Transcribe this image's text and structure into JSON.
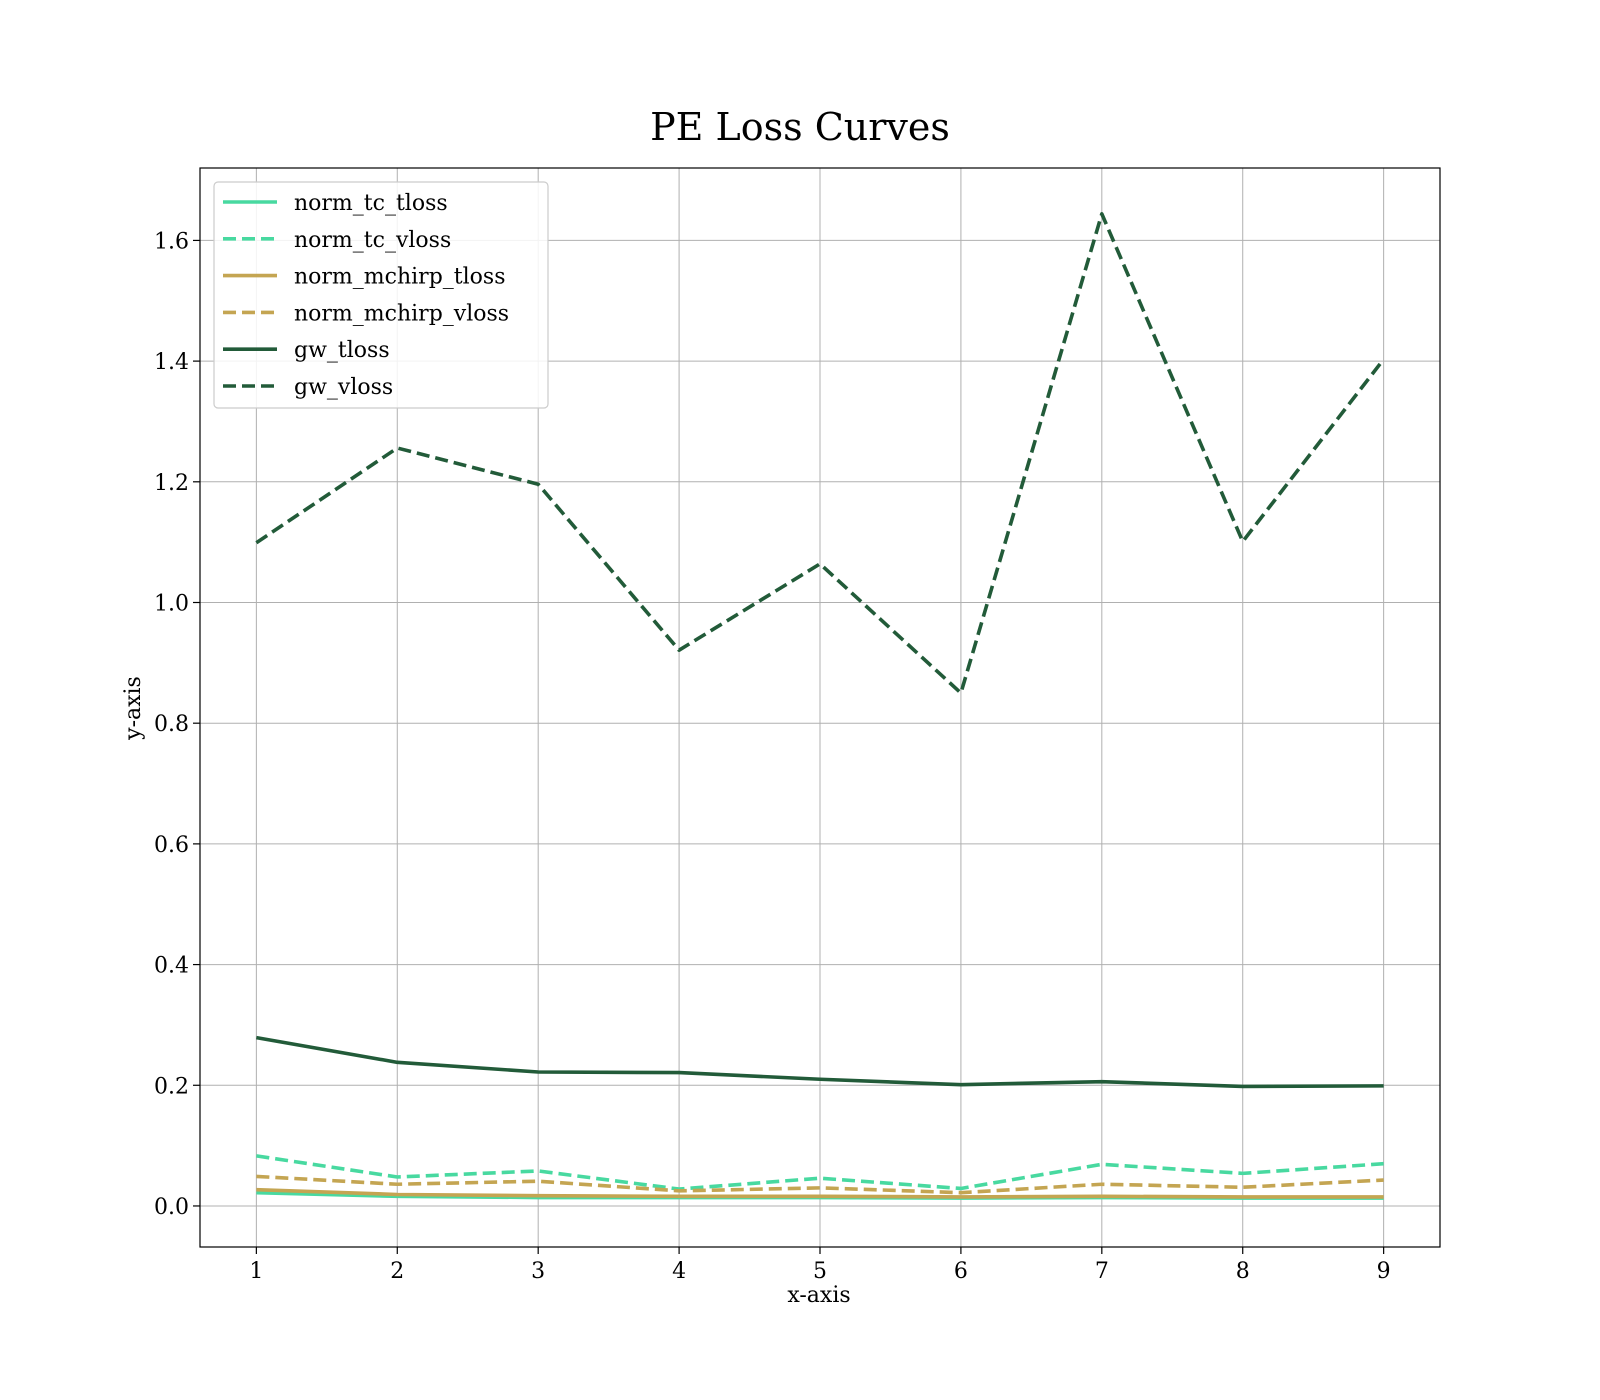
{
  "chart_data": {
    "type": "line",
    "title": "PE Loss Curves",
    "xlabel": "x-axis",
    "ylabel": "y-axis",
    "x": [
      1,
      2,
      3,
      4,
      5,
      6,
      7,
      8,
      9
    ],
    "xticks": [
      "1",
      "2",
      "3",
      "4",
      "5",
      "6",
      "7",
      "8",
      "9"
    ],
    "yticks": [
      "0.0",
      "0.2",
      "0.4",
      "0.6",
      "0.8",
      "1.0",
      "1.2",
      "1.4",
      "1.6"
    ],
    "ytick_values": [
      0.0,
      0.2,
      0.4,
      0.6,
      0.8,
      1.0,
      1.2,
      1.4,
      1.6
    ],
    "xlim": [
      0.6,
      9.4
    ],
    "ylim": [
      -0.068,
      1.72
    ],
    "grid": true,
    "legend_position": "top-left",
    "series": [
      {
        "name": "norm_tc_tloss",
        "color": "#48d9a0",
        "dash": "solid",
        "values": [
          0.022,
          0.016,
          0.014,
          0.014,
          0.014,
          0.013,
          0.014,
          0.013,
          0.013
        ]
      },
      {
        "name": "norm_tc_vloss",
        "color": "#48d9a0",
        "dash": "dashed",
        "values": [
          0.083,
          0.048,
          0.058,
          0.028,
          0.046,
          0.029,
          0.069,
          0.054,
          0.07
        ]
      },
      {
        "name": "norm_mchirp_tloss",
        "color": "#c4a552",
        "dash": "solid",
        "values": [
          0.027,
          0.019,
          0.017,
          0.016,
          0.016,
          0.015,
          0.016,
          0.015,
          0.015
        ]
      },
      {
        "name": "norm_mchirp_vloss",
        "color": "#c4a552",
        "dash": "dashed",
        "values": [
          0.049,
          0.036,
          0.041,
          0.025,
          0.03,
          0.022,
          0.036,
          0.031,
          0.043
        ]
      },
      {
        "name": "gw_tloss",
        "color": "#225b39",
        "dash": "solid",
        "values": [
          0.279,
          0.238,
          0.222,
          0.221,
          0.21,
          0.201,
          0.206,
          0.198,
          0.199
        ]
      },
      {
        "name": "gw_vloss",
        "color": "#225b39",
        "dash": "dashed",
        "values": [
          1.099,
          1.256,
          1.196,
          0.921,
          1.064,
          0.85,
          1.644,
          1.101,
          1.403
        ]
      }
    ]
  }
}
